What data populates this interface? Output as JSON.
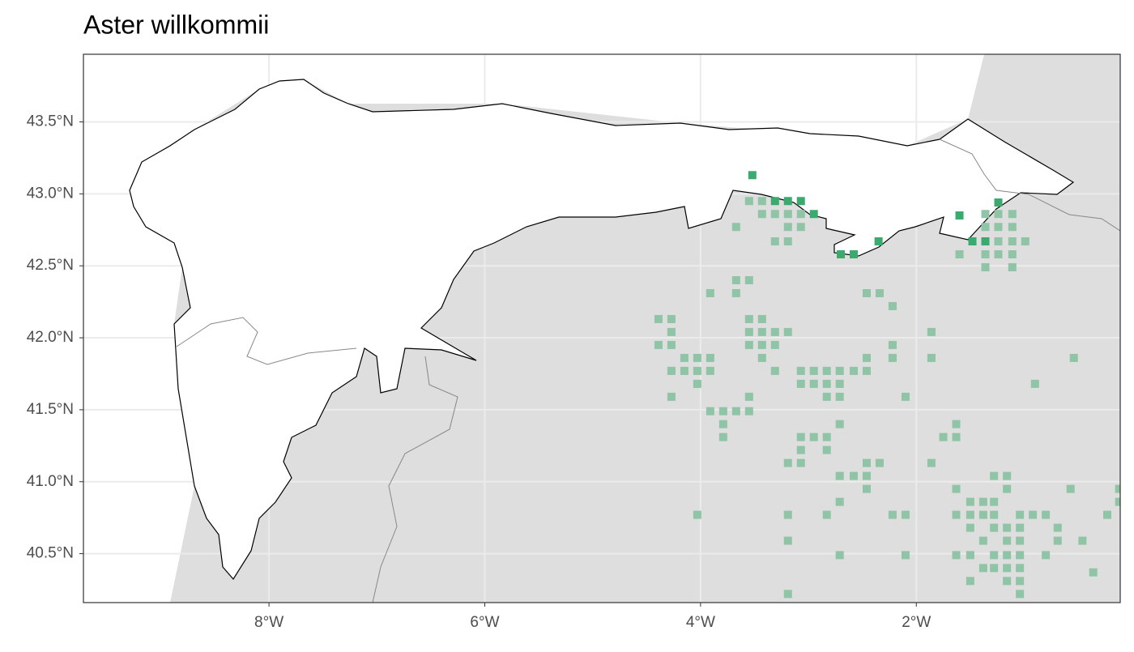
{
  "chart_data": {
    "type": "map-points",
    "title": "Aster willkommii",
    "xlim": [
      -9.72,
      -0.11
    ],
    "ylim": [
      40.16,
      43.97
    ],
    "xticks": [
      {
        "value": -8,
        "label": "8°W"
      },
      {
        "value": -6,
        "label": "6°W"
      },
      {
        "value": -4,
        "label": "4°W"
      },
      {
        "value": -2,
        "label": "2°W"
      }
    ],
    "yticks": [
      {
        "value": 40.5,
        "label": "40.5°N"
      },
      {
        "value": 41.0,
        "label": "41.0°N"
      },
      {
        "value": 41.5,
        "label": "41.5°N"
      },
      {
        "value": 42.0,
        "label": "42.0°N"
      },
      {
        "value": 42.5,
        "label": "42.5°N"
      },
      {
        "value": 43.0,
        "label": "43.0°N"
      },
      {
        "value": 43.5,
        "label": "43.5°N"
      }
    ],
    "grid": true,
    "series": [
      {
        "color": "#8fc4a6",
        "x": [
          -3.55,
          -3.43,
          -3.43,
          -3.31,
          -3.19,
          -3.07,
          -3.67,
          -3.19,
          -3.07,
          -3.31,
          -3.19,
          -1.36,
          -1.24,
          -1.11,
          -1.36,
          -1.24,
          -1.11,
          -1.6,
          -1.36,
          -1.24,
          -1.11,
          -1.24,
          -1.11,
          -0.99,
          -1.36,
          -1.11,
          -3.67,
          -3.55,
          -3.91,
          -3.67,
          -2.46,
          -2.34,
          -2.22,
          -4.39,
          -4.27,
          -3.55,
          -3.43,
          -4.27,
          -3.55,
          -3.43,
          -3.31,
          -3.19,
          -1.86,
          -4.39,
          -4.27,
          -3.55,
          -3.43,
          -3.31,
          -2.22,
          -4.15,
          -4.03,
          -3.91,
          -3.43,
          -2.46,
          -2.22,
          -1.86,
          -0.54,
          -4.27,
          -4.15,
          -4.03,
          -3.91,
          -3.31,
          -3.07,
          -2.95,
          -2.83,
          -2.71,
          -2.58,
          -2.46,
          -4.03,
          -3.07,
          -2.95,
          -2.83,
          -2.71,
          -0.9,
          -4.27,
          -3.55,
          -2.83,
          -2.71,
          -2.1,
          -3.91,
          -3.79,
          -3.67,
          -3.55,
          -3.79,
          -2.71,
          -1.63,
          -3.79,
          -3.07,
          -2.95,
          -2.83,
          -1.75,
          -1.63,
          -3.07,
          -2.83,
          -3.19,
          -3.07,
          -2.46,
          -2.34,
          -1.86,
          -2.71,
          -2.58,
          -2.46,
          -1.28,
          -1.16,
          -2.46,
          -1.63,
          -1.16,
          -0.57,
          -0.12,
          -2.71,
          -1.5,
          -1.38,
          -1.28,
          -0.12,
          -4.03,
          -3.19,
          -2.83,
          -2.22,
          -2.1,
          -1.63,
          -1.5,
          -1.38,
          -1.28,
          -1.04,
          -0.92,
          -0.8,
          -0.23,
          -1.5,
          -1.28,
          -1.16,
          -1.04,
          -0.69,
          -3.19,
          -1.38,
          -1.16,
          -1.04,
          -0.69,
          -0.46,
          -2.71,
          -2.1,
          -1.63,
          -1.5,
          -1.28,
          -1.16,
          -1.04,
          -0.8,
          -1.38,
          -1.28,
          -1.16,
          -1.04,
          -0.36,
          -1.5,
          -1.16,
          -1.04,
          -3.19,
          -1.04
        ],
        "y": [
          42.95,
          42.95,
          42.86,
          42.86,
          42.86,
          42.86,
          42.77,
          42.77,
          42.77,
          42.67,
          42.67,
          42.86,
          42.86,
          42.86,
          42.77,
          42.77,
          42.77,
          42.58,
          42.58,
          42.58,
          42.58,
          42.67,
          42.67,
          42.67,
          42.49,
          42.49,
          42.4,
          42.4,
          42.31,
          42.31,
          42.31,
          42.31,
          42.22,
          42.13,
          42.13,
          42.13,
          42.13,
          42.04,
          42.04,
          42.04,
          42.04,
          42.04,
          42.04,
          41.95,
          41.95,
          41.95,
          41.95,
          41.95,
          41.95,
          41.86,
          41.86,
          41.86,
          41.86,
          41.86,
          41.86,
          41.86,
          41.86,
          41.77,
          41.77,
          41.77,
          41.77,
          41.77,
          41.77,
          41.77,
          41.77,
          41.77,
          41.77,
          41.77,
          41.68,
          41.68,
          41.68,
          41.68,
          41.68,
          41.68,
          41.59,
          41.59,
          41.59,
          41.59,
          41.59,
          41.49,
          41.49,
          41.49,
          41.49,
          41.4,
          41.4,
          41.4,
          41.31,
          41.31,
          41.31,
          41.31,
          41.31,
          41.31,
          41.22,
          41.22,
          41.13,
          41.13,
          41.13,
          41.13,
          41.13,
          41.04,
          41.04,
          41.04,
          41.04,
          41.04,
          40.95,
          40.95,
          40.95,
          40.95,
          40.95,
          40.86,
          40.86,
          40.86,
          40.86,
          40.86,
          40.77,
          40.77,
          40.77,
          40.77,
          40.77,
          40.77,
          40.77,
          40.77,
          40.77,
          40.77,
          40.77,
          40.77,
          40.77,
          40.68,
          40.68,
          40.68,
          40.68,
          40.68,
          40.59,
          40.59,
          40.59,
          40.59,
          40.59,
          40.59,
          40.49,
          40.49,
          40.49,
          40.49,
          40.49,
          40.49,
          40.49,
          40.49,
          40.4,
          40.4,
          40.4,
          40.4,
          40.37,
          40.31,
          40.31,
          40.31,
          40.22,
          40.22
        ]
      },
      {
        "color": "#3aaa6f",
        "x": [
          -3.52,
          -3.31,
          -3.19,
          -3.07,
          -2.95,
          -2.35,
          -2.7,
          -2.58,
          -1.6,
          -1.48,
          -1.36,
          -1.24
        ],
        "y": [
          43.13,
          42.95,
          42.95,
          42.95,
          42.86,
          42.67,
          42.58,
          42.58,
          42.85,
          42.67,
          42.67,
          42.94
        ]
      }
    ]
  }
}
